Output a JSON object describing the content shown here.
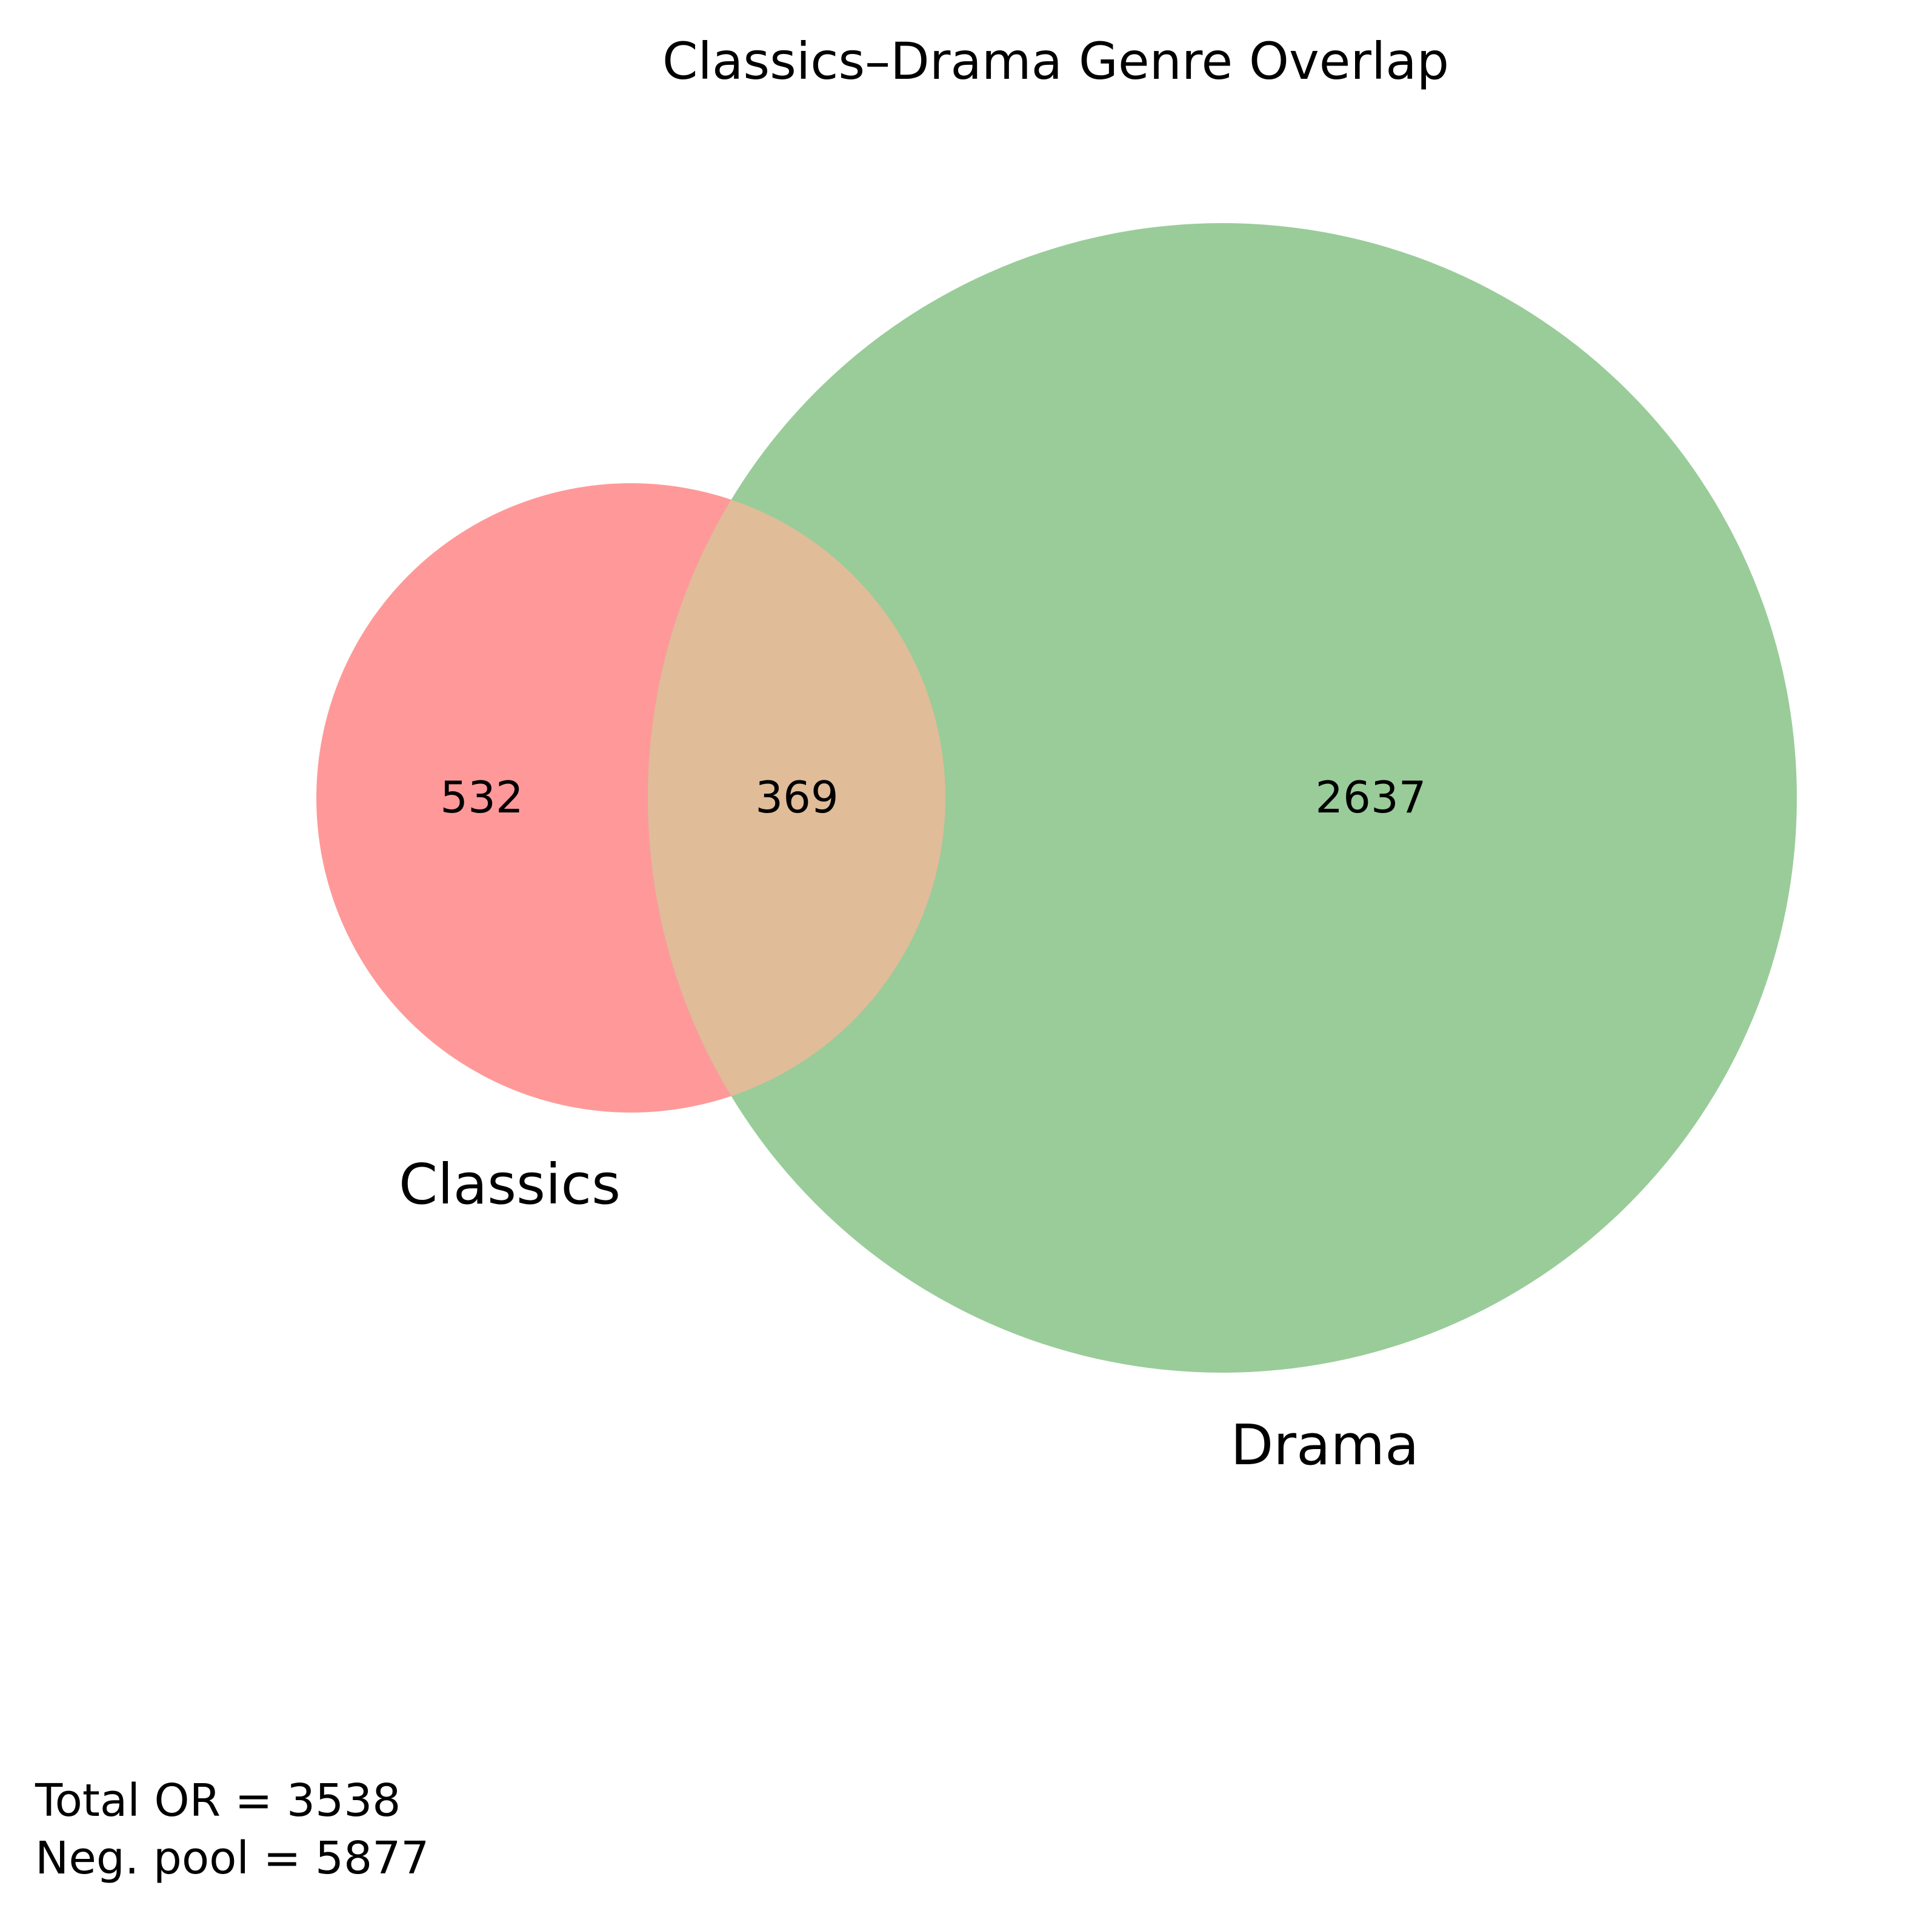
{
  "title": "Classics–Drama Genre Overlap",
  "sets": [
    {
      "name": "Classics",
      "color": "#ff9999"
    },
    {
      "name": "Drama",
      "color": "#99cc99"
    }
  ],
  "overlap_color": "#e0bc99",
  "chart_data": {
    "type": "venn",
    "title": "Classics–Drama Genre Overlap",
    "regions": {
      "classics_only": 532,
      "intersection": 369,
      "drama_only": 2637
    }
  },
  "annotations": {
    "total_line": "Total OR = 3538",
    "neg_pool_line": "Neg. pool = 5877"
  }
}
